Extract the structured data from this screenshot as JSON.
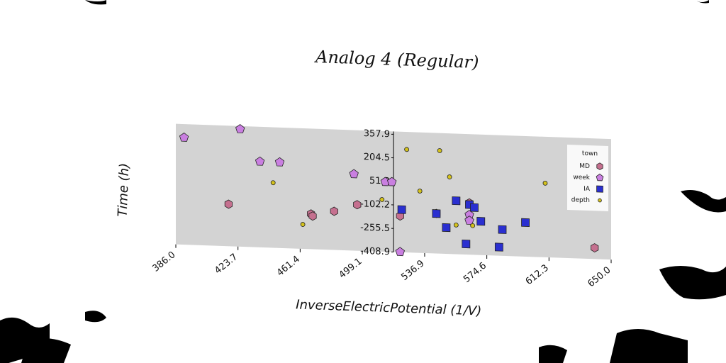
{
  "chart_data": {
    "type": "scatter",
    "title": "Analog 4 (Regular)",
    "xlabel": "InverseElectricPotential (1/V)",
    "ylabel": "Time (h)",
    "xlim": [
      386.0,
      650.0
    ],
    "ylim": [
      -408.9,
      357.9
    ],
    "x_ticks": [
      "386.0",
      "423.7",
      "461.4",
      "499.1",
      "536.9",
      "574.6",
      "612.3",
      "650.0"
    ],
    "y_ticks": [
      "357.9",
      "204.5",
      "51.2",
      "-102.2",
      "-255.5",
      "-408.9"
    ],
    "legend": {
      "title": "town",
      "position": "top-right",
      "entries": [
        {
          "label": "MD",
          "marker": "hexagon",
          "color": "#c5708f"
        },
        {
          "label": "week",
          "marker": "pentagon",
          "color": "#c97fe0"
        },
        {
          "label": "IA",
          "marker": "square",
          "color": "#2a2fd0"
        },
        {
          "label": "depth",
          "marker": "circle",
          "color": "#d4c21d"
        }
      ]
    },
    "grid": false,
    "background": "#d3d3d3",
    "series": [
      {
        "name": "MD",
        "points": [
          [
            418,
            -135
          ],
          [
            468,
            -180
          ],
          [
            469,
            -193
          ],
          [
            482,
            -157
          ],
          [
            496,
            -109
          ],
          [
            522,
            -173
          ],
          [
            544,
            -148
          ],
          [
            564,
            -72
          ],
          [
            640,
            -336
          ]
        ]
      },
      {
        "name": "week",
        "points": [
          [
            391,
            289
          ],
          [
            425,
            357
          ],
          [
            437,
            150
          ],
          [
            449,
            150
          ],
          [
            494,
            90
          ],
          [
            513,
            46
          ],
          [
            517,
            47
          ],
          [
            522,
            -407
          ],
          [
            564,
            -150
          ],
          [
            564,
            -187
          ]
        ]
      },
      {
        "name": "IA",
        "points": [
          [
            523,
            -131
          ],
          [
            544,
            -149
          ],
          [
            550,
            -238
          ],
          [
            556,
            -61
          ],
          [
            562,
            -340
          ],
          [
            564,
            -83
          ],
          [
            567,
            -101
          ],
          [
            571,
            -189
          ],
          [
            582,
            -353
          ],
          [
            584,
            -238
          ],
          [
            598,
            -187
          ]
        ]
      },
      {
        "name": "depth",
        "points": [
          [
            445,
            15
          ],
          [
            463,
            -250
          ],
          [
            511,
            -70
          ],
          [
            526,
            262
          ],
          [
            534,
            -6
          ],
          [
            546,
            262
          ],
          [
            552,
            93
          ],
          [
            556,
            -219
          ],
          [
            566,
            -219
          ],
          [
            610,
            74
          ]
        ]
      }
    ]
  }
}
